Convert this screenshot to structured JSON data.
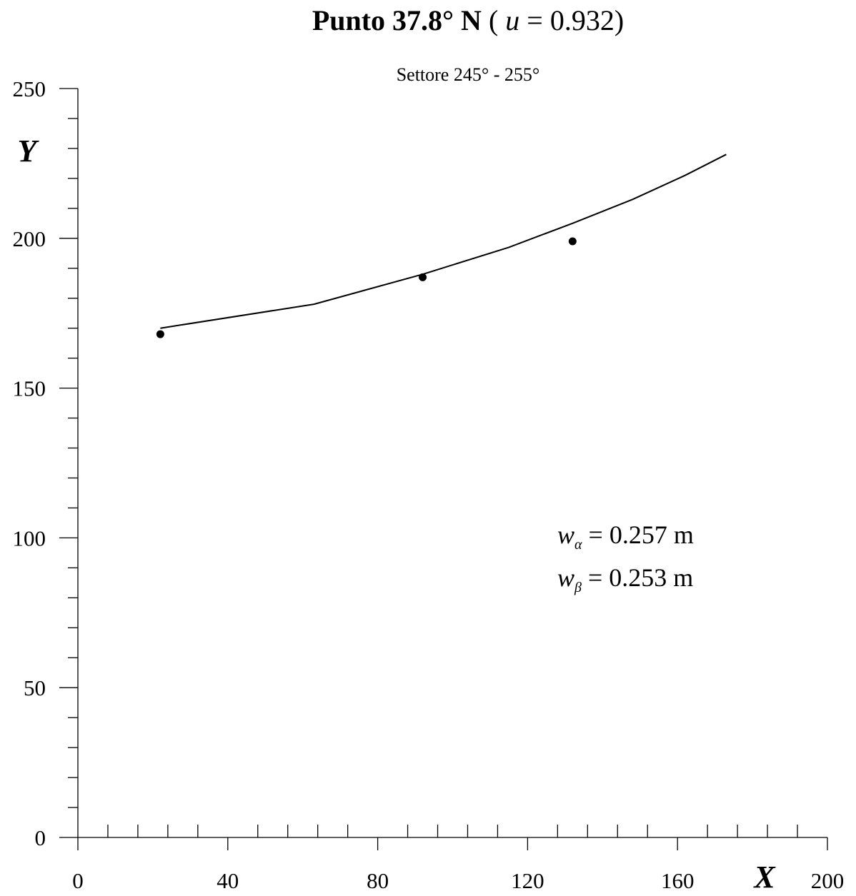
{
  "title": {
    "prefix": "Punto 37.8° N",
    "open": " ( ",
    "var": "u",
    "rest": " = 0.932)"
  },
  "chart_data": {
    "type": "line",
    "subtitle": "Settore 245° - 255°",
    "xlabel": "X",
    "ylabel": "Y",
    "xlim": [
      0,
      200
    ],
    "ylim": [
      0,
      250
    ],
    "x_ticks": [
      0,
      40,
      80,
      120,
      160,
      200
    ],
    "y_ticks": [
      0,
      50,
      100,
      150,
      200,
      250
    ],
    "x_minor_step": 8,
    "y_minor_step": 10,
    "grid": false,
    "series": [
      {
        "kind": "line",
        "x": [
          22,
          63,
          92,
          115,
          132,
          148,
          162,
          173
        ],
        "y": [
          170,
          178,
          188,
          197,
          205,
          213,
          221,
          228
        ]
      },
      {
        "kind": "scatter",
        "x": [
          22,
          92,
          132
        ],
        "y": [
          168,
          187,
          199
        ]
      }
    ],
    "annotations": [
      {
        "var": "w",
        "sub": "α",
        "rest": " = 0.257 m"
      },
      {
        "var": "w",
        "sub": "β",
        "rest": " = 0.253 m"
      }
    ]
  }
}
